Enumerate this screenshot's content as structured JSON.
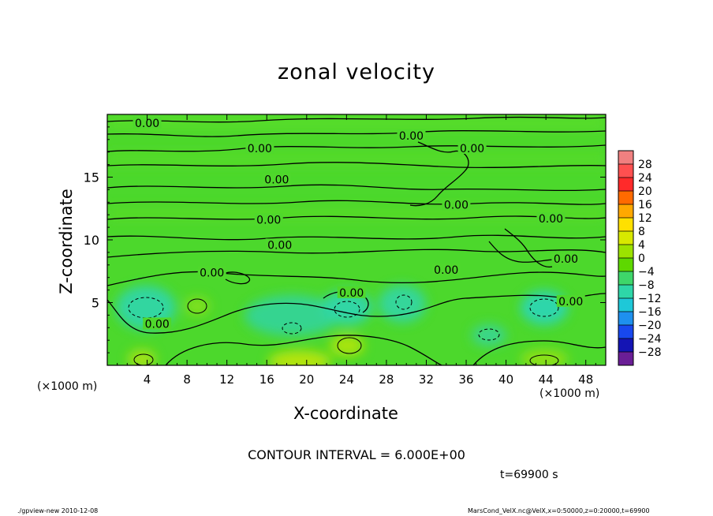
{
  "chart_data": {
    "type": "heatmap",
    "title": "zonal velocity",
    "xlabel": "X-coordinate",
    "ylabel": "Z-coordinate",
    "x_unit": "(×1000 m)",
    "xlim": [
      0,
      50
    ],
    "ylim": [
      0,
      20
    ],
    "x_ticks": [
      4,
      8,
      12,
      16,
      20,
      24,
      28,
      32,
      36,
      40,
      44,
      48
    ],
    "y_ticks": [
      5,
      10,
      15
    ],
    "contour_interval_text": "CONTOUR INTERVAL = 6.000E+00",
    "contour_labels": [
      {
        "text": "0.00",
        "x": 4.0,
        "z": 19.3
      },
      {
        "text": "0.00",
        "x": 15.3,
        "z": 17.3
      },
      {
        "text": "0.00",
        "x": 30.5,
        "z": 18.3
      },
      {
        "text": "0.00",
        "x": 36.6,
        "z": 17.3
      },
      {
        "text": "0.00",
        "x": 17.0,
        "z": 14.8
      },
      {
        "text": "0.00",
        "x": 35.0,
        "z": 12.8
      },
      {
        "text": "0.00",
        "x": 16.2,
        "z": 11.6
      },
      {
        "text": "0.00",
        "x": 44.5,
        "z": 11.7
      },
      {
        "text": "0.00",
        "x": 17.3,
        "z": 9.6
      },
      {
        "text": "0.00",
        "x": 46.0,
        "z": 8.5
      },
      {
        "text": "0.00",
        "x": 34.0,
        "z": 7.6
      },
      {
        "text": "0.00",
        "x": 10.5,
        "z": 7.4
      },
      {
        "text": "0.00",
        "x": 24.5,
        "z": 5.8
      },
      {
        "text": "0.00",
        "x": 46.5,
        "z": 5.1
      },
      {
        "text": "0.00",
        "x": 5.0,
        "z": 3.3
      }
    ],
    "colorbar": {
      "ticks": [
        28,
        24,
        20,
        16,
        12,
        8,
        4,
        0,
        -4,
        -8,
        -12,
        -16,
        -20,
        -24,
        -28
      ],
      "colors": [
        "#f08080",
        "#ff5050",
        "#ff2a2a",
        "#ff6a00",
        "#ffa800",
        "#ffe000",
        "#d8e800",
        "#9ce200",
        "#5ed800",
        "#3ed66a",
        "#2ed6a8",
        "#1ec8d8",
        "#1e90ee",
        "#1848ee",
        "#1414b4",
        "#6a1e96"
      ]
    },
    "time_text": "t=69900 s"
  },
  "footer": {
    "left": "./gpview-new   2010-12-08",
    "right": "MarsCond_VelX.nc@VelX,x=0:50000,z=0:20000,t=69900"
  }
}
